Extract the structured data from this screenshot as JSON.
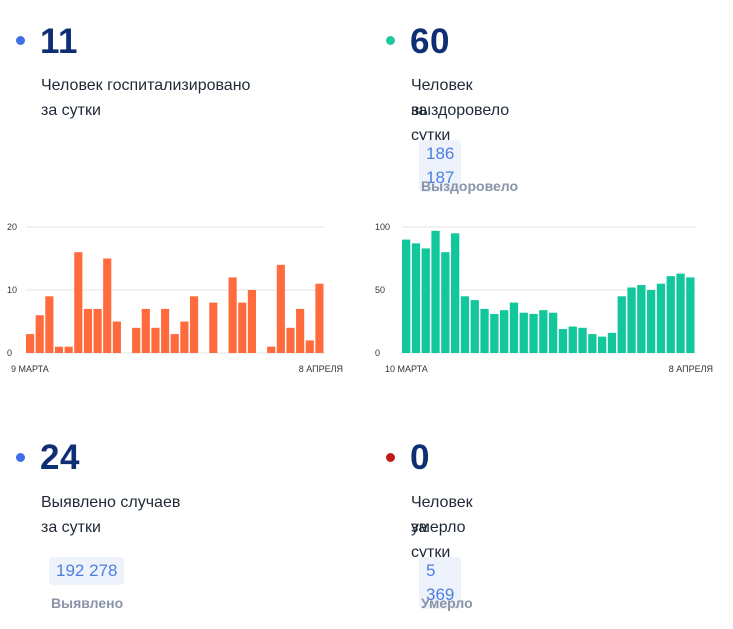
{
  "colors": {
    "hospitalized_dot": "#3f6ee8",
    "recovered_dot": "#1ec9a0",
    "cases_dot": "#3f6ee8",
    "deaths_dot": "#c01a1a",
    "bar_orange": "#ff6b3d",
    "bar_green": "#12c79b"
  },
  "hospitalized": {
    "value": "11",
    "line1": "Человек госпитализировано",
    "line2": "за сутки"
  },
  "recovered": {
    "value": "60",
    "line1": "Человек выздоровело",
    "line2": "за сутки",
    "total": "186 187",
    "total_label": "Выздоровело"
  },
  "cases": {
    "value": "24",
    "line1": "Выявлено случаев",
    "line2": "за сутки",
    "total": "192 278",
    "total_label": "Выявлено"
  },
  "deaths": {
    "value": "0",
    "line1": "Человек умерло",
    "line2": "за сутки",
    "total": "5 369",
    "total_label": "Умерло"
  },
  "chart_data": [
    {
      "type": "bar",
      "title": "",
      "x_start_label": "9 МАРТА",
      "x_end_label": "8 АПРЕЛЯ",
      "yticks": [
        0,
        10,
        20
      ],
      "ylim": [
        0,
        20
      ],
      "grid": true,
      "values": [
        3,
        6,
        9,
        1,
        1,
        16,
        7,
        7,
        15,
        5,
        0,
        4,
        7,
        4,
        7,
        3,
        5,
        9,
        0,
        8,
        0,
        12,
        8,
        10,
        0,
        1,
        14,
        4,
        7,
        2,
        11
      ]
    },
    {
      "type": "bar",
      "title": "",
      "x_start_label": "10 МАРТА",
      "x_end_label": "8 АПРЕЛЯ",
      "yticks": [
        0,
        50,
        100
      ],
      "ylim": [
        0,
        100
      ],
      "grid": true,
      "values": [
        90,
        87,
        83,
        97,
        80,
        95,
        45,
        42,
        35,
        31,
        34,
        40,
        32,
        31,
        34,
        32,
        19,
        21,
        20,
        15,
        13,
        16,
        45,
        52,
        54,
        50,
        55,
        61,
        63,
        60
      ]
    }
  ]
}
